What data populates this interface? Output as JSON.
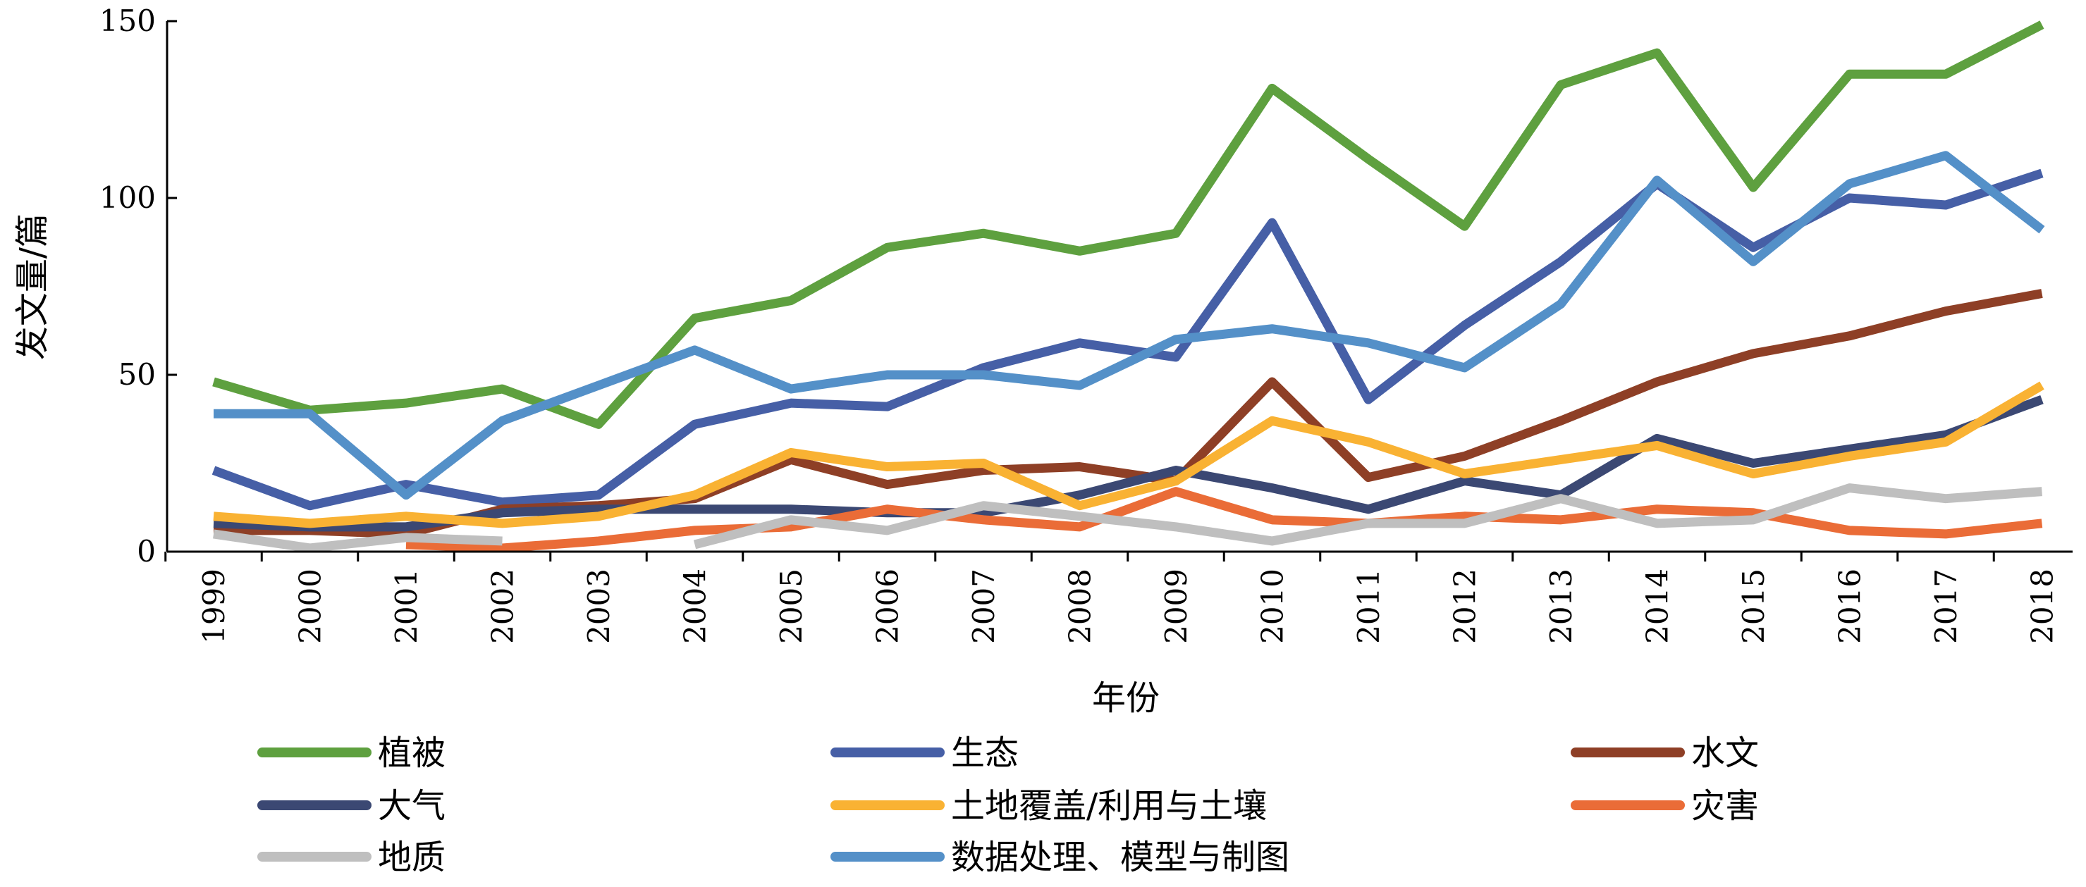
{
  "chart_data": {
    "type": "line",
    "xlabel": "年份",
    "ylabel": "发文量/篇",
    "ylim": [
      0,
      150
    ],
    "yticks": [
      0,
      50,
      100,
      150
    ],
    "categories": [
      "1999",
      "2000",
      "2001",
      "2002",
      "2003",
      "2004",
      "2005",
      "2006",
      "2007",
      "2008",
      "2009",
      "2010",
      "2011",
      "2012",
      "2013",
      "2014",
      "2015",
      "2016",
      "2017",
      "2018"
    ],
    "legend_position": "bottom",
    "grid": false,
    "series": [
      {
        "name": "植被",
        "color": "#5ea03f",
        "values": [
          48,
          40,
          42,
          46,
          36,
          66,
          71,
          86,
          90,
          85,
          90,
          131,
          111,
          92,
          132,
          141,
          103,
          135,
          135,
          149
        ]
      },
      {
        "name": "生态",
        "color": "#465fa6",
        "values": [
          23,
          13,
          19,
          14,
          16,
          36,
          42,
          41,
          52,
          59,
          55,
          93,
          43,
          64,
          82,
          104,
          86,
          100,
          98,
          107
        ]
      },
      {
        "name": "水文",
        "color": "#8e3f26",
        "values": [
          6,
          6,
          5,
          12,
          13,
          15,
          26,
          19,
          23,
          24,
          20,
          48,
          21,
          27,
          37,
          48,
          56,
          61,
          68,
          73
        ]
      },
      {
        "name": "大气",
        "color": "#3b4873",
        "values": [
          8,
          7,
          7,
          11,
          12,
          12,
          12,
          11,
          11,
          16,
          23,
          18,
          12,
          20,
          16,
          32,
          25,
          29,
          33,
          43
        ]
      },
      {
        "name": "土地覆盖/利用与土壤",
        "color": "#f9b233",
        "values": [
          10,
          8,
          10,
          8,
          10,
          16,
          28,
          24,
          25,
          13,
          20,
          37,
          31,
          22,
          26,
          30,
          22,
          27,
          31,
          47
        ]
      },
      {
        "name": "灾害",
        "color": "#ea6c37",
        "values": [
          null,
          null,
          2,
          1,
          3,
          6,
          7,
          12,
          9,
          7,
          17,
          9,
          8,
          10,
          9,
          12,
          11,
          6,
          5,
          8
        ]
      },
      {
        "name": "地质",
        "color": "#bfbfbf",
        "values": [
          5,
          1,
          4,
          3,
          null,
          2,
          9,
          6,
          13,
          10,
          7,
          3,
          8,
          8,
          15,
          8,
          9,
          18,
          15,
          17
        ]
      },
      {
        "name": "数据处理、模型与制图",
        "color": "#5490c8",
        "values": [
          39,
          39,
          16,
          37,
          47,
          57,
          46,
          50,
          50,
          47,
          60,
          63,
          59,
          52,
          70,
          105,
          82,
          104,
          112,
          91
        ]
      }
    ]
  }
}
